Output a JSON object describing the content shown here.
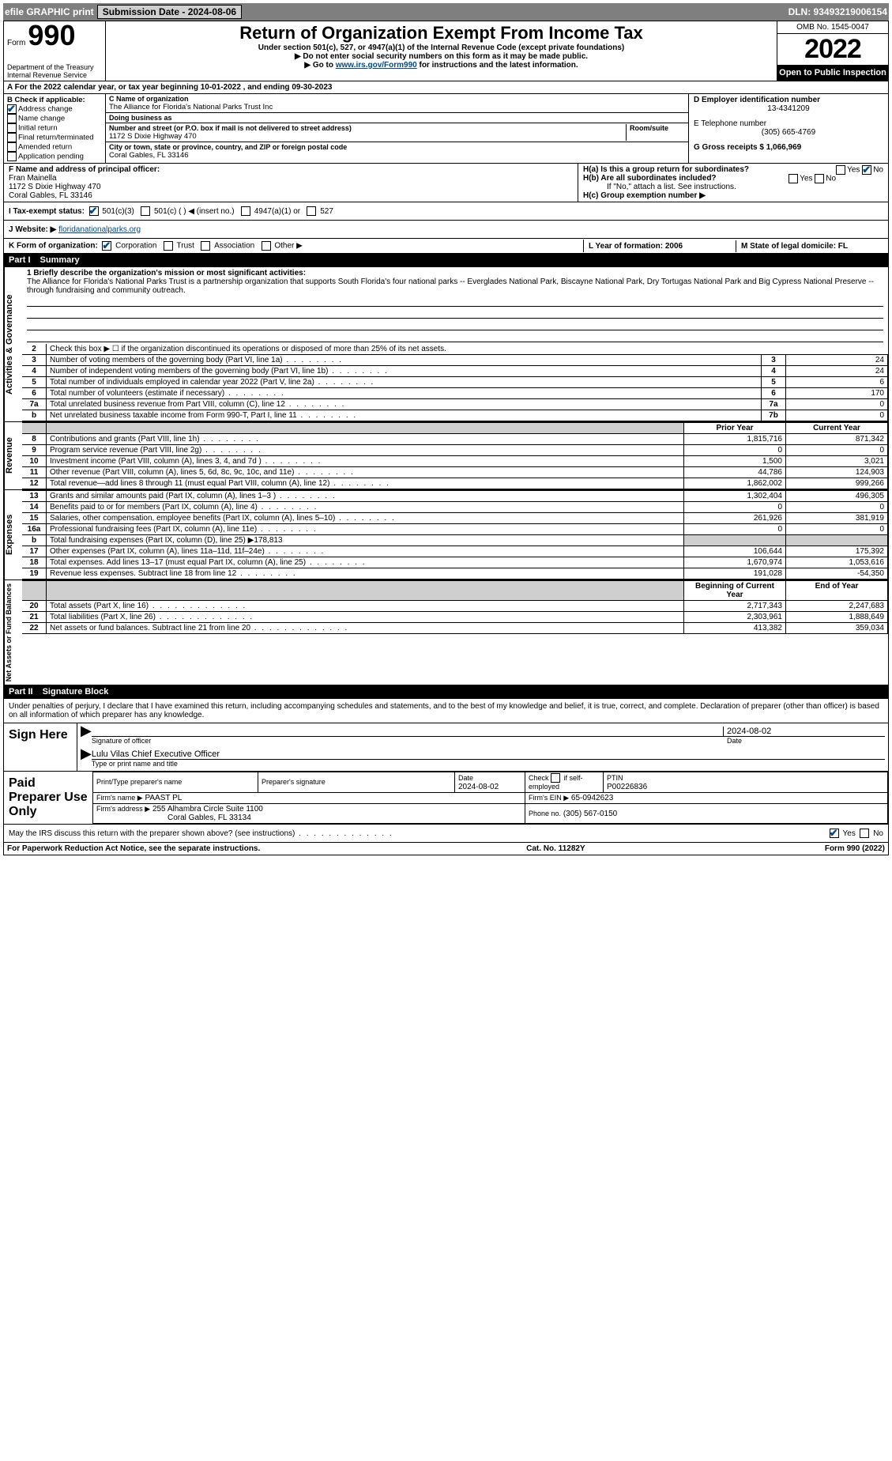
{
  "topbar": {
    "efile": "efile GRAPHIC print",
    "submission_label": "Submission Date - 2024-08-06",
    "dln_label": "DLN: 93493219006154"
  },
  "header": {
    "form_word": "Form",
    "form_number": "990",
    "dept": "Department of the Treasury",
    "irs": "Internal Revenue Service",
    "title": "Return of Organization Exempt From Income Tax",
    "subtitle": "Under section 501(c), 527, or 4947(a)(1) of the Internal Revenue Code (except private foundations)",
    "line1": "▶ Do not enter social security numbers on this form as it may be made public.",
    "line2_pre": "▶ Go to ",
    "line2_link": "www.irs.gov/Form990",
    "line2_post": " for instructions and the latest information.",
    "omb": "OMB No. 1545-0047",
    "year": "2022",
    "open": "Open to Public Inspection"
  },
  "rowA": "A For the 2022 calendar year, or tax year beginning 10-01-2022    , and ending 09-30-2023",
  "sectionB": {
    "header": "B Check if applicable:",
    "items": [
      "Address change",
      "Name change",
      "Initial return",
      "Final return/terminated",
      "Amended return",
      "Application pending"
    ],
    "checked_index": 0
  },
  "sectionC": {
    "name_label": "C Name of organization",
    "name": "The Alliance for Florida's National Parks Trust Inc",
    "dba_label": "Doing business as",
    "dba": "",
    "addr_label": "Number and street (or P.O. box if mail is not delivered to street address)",
    "room_label": "Room/suite",
    "addr": "1172 S Dixie Highway 470",
    "city_label": "City or town, state or province, country, and ZIP or foreign postal code",
    "city": "Coral Gables, FL  33146"
  },
  "sectionD": {
    "label": "D Employer identification number",
    "ein": "13-4341209",
    "phone_label": "E Telephone number",
    "phone": "(305) 665-4769",
    "gross_label": "G Gross receipts $",
    "gross": "1,066,969"
  },
  "sectionF": {
    "label": "F  Name and address of principal officer:",
    "name": "Fran Mainella",
    "addr1": "1172 S Dixie Highway 470",
    "addr2": "Coral Gables, FL  33146"
  },
  "sectionH": {
    "ha": "H(a)  Is this a group return for subordinates?",
    "hb": "H(b)  Are all subordinates included?",
    "hb_note": "If \"No,\" attach a list. See instructions.",
    "hc": "H(c)  Group exemption number ▶",
    "yes": "Yes",
    "no": "No"
  },
  "rowI": {
    "label": "I   Tax-exempt status:",
    "opts": [
      "501(c)(3)",
      "501(c) (  ) ◀ (insert no.)",
      "4947(a)(1) or",
      "527"
    ]
  },
  "rowJ": {
    "label": "J   Website: ▶",
    "value": "floridanationalparks.org"
  },
  "rowK": {
    "label": "K Form of organization:",
    "opts": [
      "Corporation",
      "Trust",
      "Association",
      "Other ▶"
    ]
  },
  "rowL": {
    "l": "L Year of formation: 2006",
    "m": "M State of legal domicile: FL"
  },
  "part1": {
    "header_pt": "Part I",
    "header_txt": "Summary",
    "mission_label": "1   Briefly describe the organization's mission or most significant activities:",
    "mission": "The Alliance for Florida's National Parks Trust is a partnership organization that supports South Florida's four national parks -- Everglades National Park, Biscayne National Park, Dry Tortugas National Park and Big Cypress National Preserve -- through fundraising and community outreach."
  },
  "governance_side": "Activities & Governance",
  "gov_rows": [
    {
      "n": "2",
      "desc": "Check this box ▶ ☐  if the organization discontinued its operations or disposed of more than 25% of its net assets.",
      "box": "",
      "val": ""
    },
    {
      "n": "3",
      "desc": "Number of voting members of the governing body (Part VI, line 1a)",
      "box": "3",
      "val": "24"
    },
    {
      "n": "4",
      "desc": "Number of independent voting members of the governing body (Part VI, line 1b)",
      "box": "4",
      "val": "24"
    },
    {
      "n": "5",
      "desc": "Total number of individuals employed in calendar year 2022 (Part V, line 2a)",
      "box": "5",
      "val": "6"
    },
    {
      "n": "6",
      "desc": "Total number of volunteers (estimate if necessary)",
      "box": "6",
      "val": "170"
    },
    {
      "n": "7a",
      "desc": "Total unrelated business revenue from Part VIII, column (C), line 12",
      "box": "7a",
      "val": "0"
    },
    {
      "n": "b",
      "desc": "Net unrelated business taxable income from Form 990-T, Part I, line 11",
      "box": "7b",
      "val": "0"
    }
  ],
  "revenue_side": "Revenue",
  "col_headers": {
    "prior": "Prior Year",
    "current": "Current Year"
  },
  "rev_rows": [
    {
      "n": "8",
      "desc": "Contributions and grants (Part VIII, line 1h)",
      "p": "1,815,716",
      "c": "871,342"
    },
    {
      "n": "9",
      "desc": "Program service revenue (Part VIII, line 2g)",
      "p": "0",
      "c": "0"
    },
    {
      "n": "10",
      "desc": "Investment income (Part VIII, column (A), lines 3, 4, and 7d )",
      "p": "1,500",
      "c": "3,021"
    },
    {
      "n": "11",
      "desc": "Other revenue (Part VIII, column (A), lines 5, 6d, 8c, 9c, 10c, and 11e)",
      "p": "44,786",
      "c": "124,903"
    },
    {
      "n": "12",
      "desc": "Total revenue—add lines 8 through 11 (must equal Part VIII, column (A), line 12)",
      "p": "1,862,002",
      "c": "999,266"
    }
  ],
  "expenses_side": "Expenses",
  "exp_rows": [
    {
      "n": "13",
      "desc": "Grants and similar amounts paid (Part IX, column (A), lines 1–3 )",
      "p": "1,302,404",
      "c": "496,305"
    },
    {
      "n": "14",
      "desc": "Benefits paid to or for members (Part IX, column (A), line 4)",
      "p": "0",
      "c": "0"
    },
    {
      "n": "15",
      "desc": "Salaries, other compensation, employee benefits (Part IX, column (A), lines 5–10)",
      "p": "261,926",
      "c": "381,919"
    },
    {
      "n": "16a",
      "desc": "Professional fundraising fees (Part IX, column (A), line 11e)",
      "p": "0",
      "c": "0"
    },
    {
      "n": "b",
      "desc": "Total fundraising expenses (Part IX, column (D), line 25) ▶178,813",
      "p": "",
      "c": "",
      "shade": true
    },
    {
      "n": "17",
      "desc": "Other expenses (Part IX, column (A), lines 11a–11d, 11f–24e)",
      "p": "106,644",
      "c": "175,392"
    },
    {
      "n": "18",
      "desc": "Total expenses. Add lines 13–17 (must equal Part IX, column (A), line 25)",
      "p": "1,670,974",
      "c": "1,053,616"
    },
    {
      "n": "19",
      "desc": "Revenue less expenses. Subtract line 18 from line 12",
      "p": "191,028",
      "c": "-54,350"
    }
  ],
  "net_side": "Net Assets or Fund Balances",
  "net_headers": {
    "beg": "Beginning of Current Year",
    "end": "End of Year"
  },
  "net_rows": [
    {
      "n": "20",
      "desc": "Total assets (Part X, line 16)",
      "p": "2,717,343",
      "c": "2,247,683"
    },
    {
      "n": "21",
      "desc": "Total liabilities (Part X, line 26)",
      "p": "2,303,961",
      "c": "1,888,649"
    },
    {
      "n": "22",
      "desc": "Net assets or fund balances. Subtract line 21 from line 20",
      "p": "413,382",
      "c": "359,034"
    }
  ],
  "part2": {
    "header_pt": "Part II",
    "header_txt": "Signature Block",
    "penalty": "Under penalties of perjury, I declare that I have examined this return, including accompanying schedules and statements, and to the best of my knowledge and belief, it is true, correct, and complete. Declaration of preparer (other than officer) is based on all information of which preparer has any knowledge."
  },
  "sign": {
    "label": "Sign Here",
    "sig_label": "Signature of officer",
    "date": "2024-08-02",
    "date_label": "Date",
    "name": "Lulu Vilas  Chief Executive Officer",
    "name_label": "Type or print name and title"
  },
  "prep": {
    "label": "Paid Preparer Use Only",
    "h1": "Print/Type preparer's name",
    "h2": "Preparer's signature",
    "h3": "Date",
    "date": "2024-08-02",
    "h4_pre": "Check",
    "h4_post": "if self-employed",
    "h5": "PTIN",
    "ptin": "P00226836",
    "firm_label": "Firm's name    ▶",
    "firm": "PAAST PL",
    "ein_label": "Firm's EIN ▶",
    "ein": "65-0942623",
    "addr_label": "Firm's address ▶",
    "addr1": "255 Alhambra Circle Suite 1100",
    "addr2": "Coral Gables, FL  33134",
    "phone_label": "Phone no.",
    "phone": "(305) 567-0150"
  },
  "discuss": {
    "text": "May the IRS discuss this return with the preparer shown above? (see instructions)",
    "yes": "Yes",
    "no": "No"
  },
  "footer": {
    "f1": "For Paperwork Reduction Act Notice, see the separate instructions.",
    "f2": "Cat. No. 11282Y",
    "f3": "Form 990 (2022)"
  }
}
